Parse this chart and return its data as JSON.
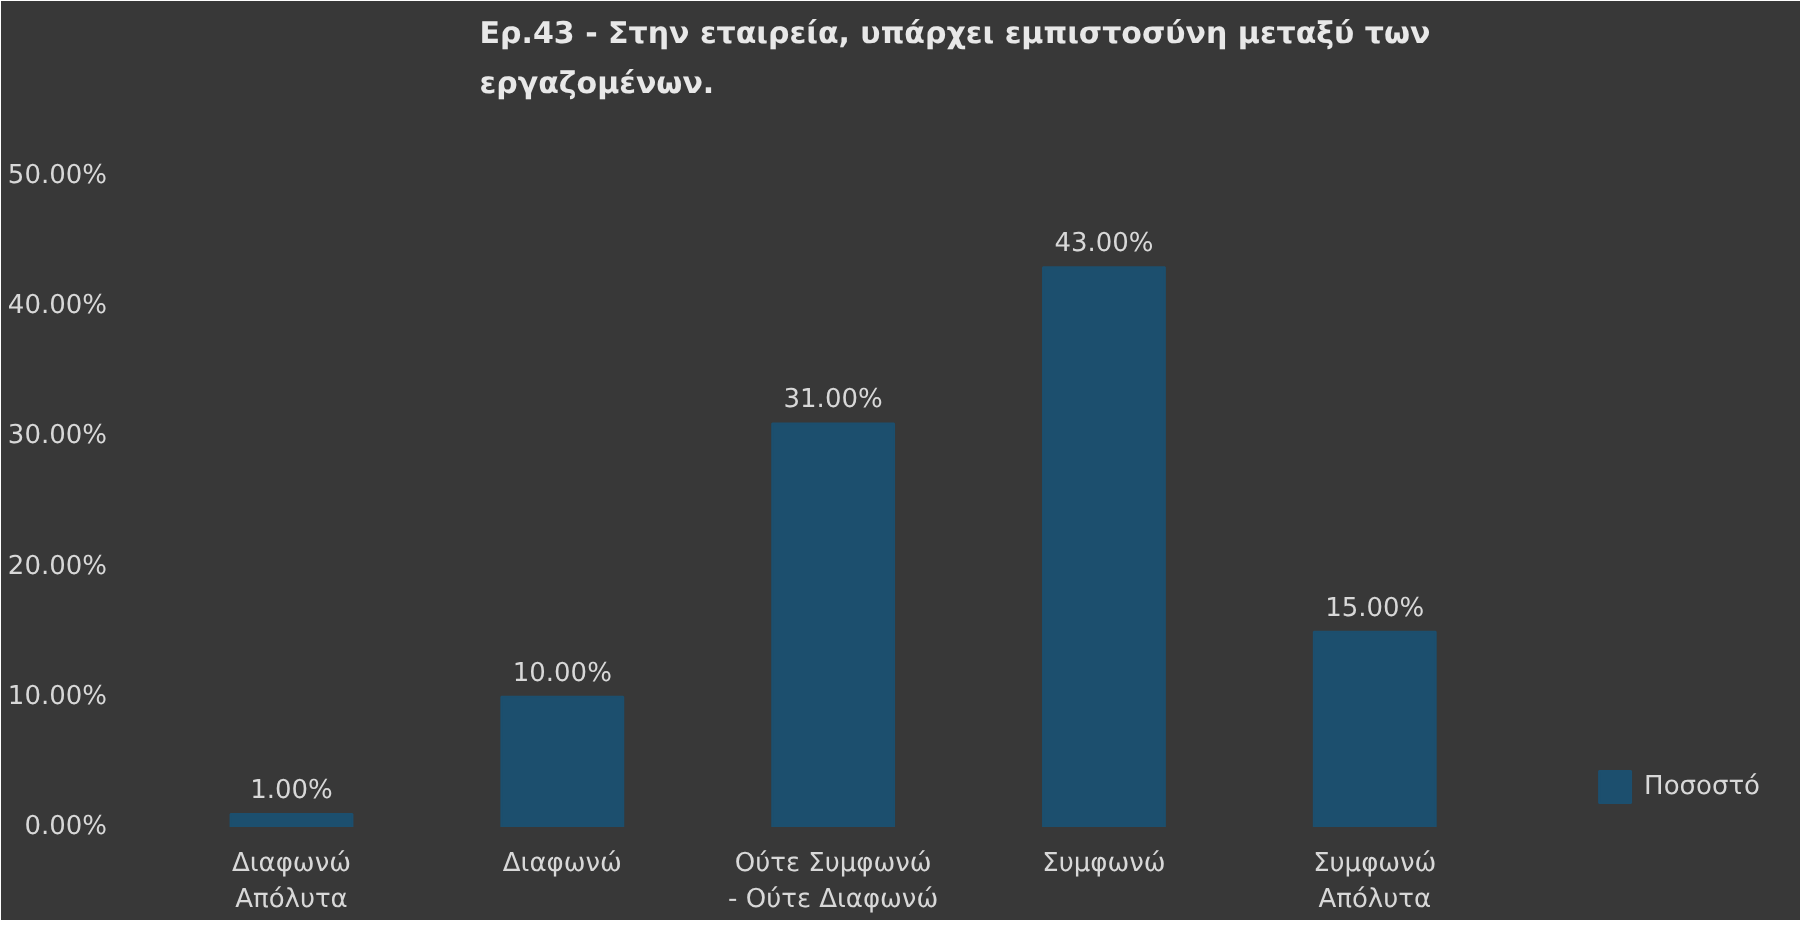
{
  "chart_data": {
    "type": "bar",
    "title": "Ερ.43 - Στην εταιρεία, υπάρχει εμπιστοσύνη μεταξύ των\nεργαζομένων.",
    "categories": [
      "Διαφωνώ\nΑπόλυτα",
      "Διαφωνώ",
      "Ούτε Συμφωνώ\n- Ούτε Διαφωνώ",
      "Συμφωνώ",
      "Συμφωνώ\nΑπόλυτα"
    ],
    "series": [
      {
        "name": "Ποσοστό",
        "color": "#1c4f6e",
        "values": [
          1,
          10,
          31,
          43,
          15
        ]
      }
    ],
    "value_labels": [
      "1.00%",
      "10.00%",
      "31.00%",
      "43.00%",
      "15.00%"
    ],
    "ylim": [
      0,
      55
    ],
    "yticks": [
      {
        "value": 0,
        "label": "0.00%"
      },
      {
        "value": 10,
        "label": "10.00%"
      },
      {
        "value": 20,
        "label": "20.00%"
      },
      {
        "value": 30,
        "label": "30.00%"
      },
      {
        "value": 40,
        "label": "40.00%"
      },
      {
        "value": 50,
        "label": "50.00%"
      }
    ],
    "legend": "bottom right"
  }
}
